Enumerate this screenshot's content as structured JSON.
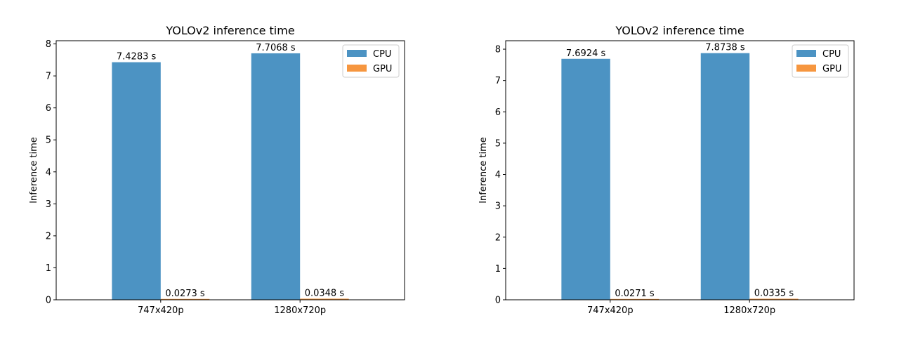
{
  "chart_data": [
    {
      "type": "bar",
      "title": "YOLOv2 inference time",
      "xlabel": "",
      "ylabel": "Inference time",
      "categories": [
        "747x420p",
        "1280x720p"
      ],
      "ylim": [
        0,
        8.1
      ],
      "yticks": [
        "0",
        "1",
        "2",
        "3",
        "4",
        "5",
        "6",
        "7",
        "8"
      ],
      "grid": false,
      "legend_position": "top-right",
      "series": [
        {
          "name": "CPU",
          "color": "#4c93c3",
          "values": [
            7.4283,
            7.7068
          ],
          "labels": [
            "7.4283 s",
            "7.7068 s"
          ]
        },
        {
          "name": "GPU",
          "color": "#f6963f",
          "values": [
            0.0273,
            0.0348
          ],
          "labels": [
            "0.0273 s",
            "0.0348 s"
          ]
        }
      ]
    },
    {
      "type": "bar",
      "title": "YOLOv2 inference time",
      "xlabel": "",
      "ylabel": "Inference time",
      "categories": [
        "747x420p",
        "1280x720p"
      ],
      "ylim": [
        0,
        8.27
      ],
      "yticks": [
        "0",
        "1",
        "2",
        "3",
        "4",
        "5",
        "6",
        "7",
        "8"
      ],
      "grid": false,
      "legend_position": "top-right",
      "series": [
        {
          "name": "CPU",
          "color": "#4c93c3",
          "values": [
            7.6924,
            7.8738
          ],
          "labels": [
            "7.6924 s",
            "7.8738 s"
          ]
        },
        {
          "name": "GPU",
          "color": "#f6963f",
          "values": [
            0.0271,
            0.0335
          ],
          "labels": [
            "0.0271 s",
            "0.0335 s"
          ]
        }
      ]
    }
  ]
}
